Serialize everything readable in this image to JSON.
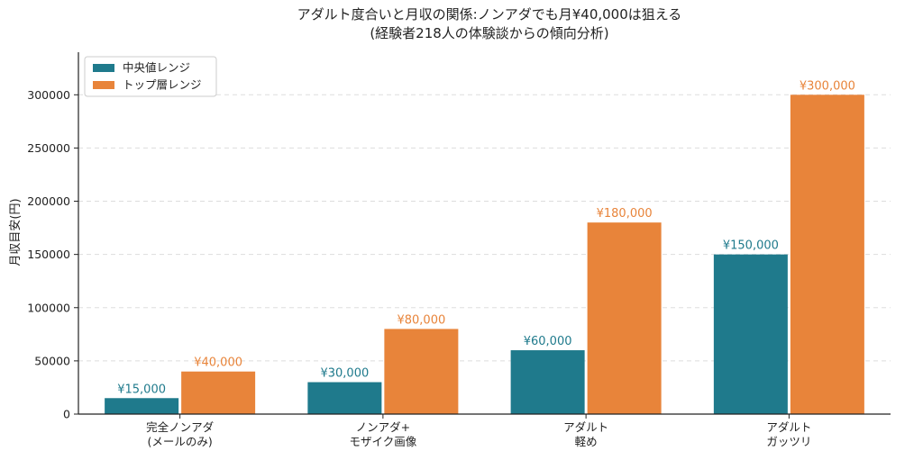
{
  "chart_data": {
    "type": "bar",
    "title_lines": [
      "アダルト度合いと月収の関係:ノンアダでも月¥40,000は狙える",
      "(経験者218人の体験談からの傾向分析)"
    ],
    "ylabel": "月収目安(円)",
    "xlabel": "",
    "ylim": [
      0,
      340000
    ],
    "yticks": [
      0,
      50000,
      100000,
      150000,
      200000,
      250000,
      300000
    ],
    "grid": "horizontal-dashed",
    "legend_position": "top-left",
    "categories": [
      [
        "完全ノンアダ",
        "(メールのみ)"
      ],
      [
        "ノンアダ+",
        "モザイク画像"
      ],
      [
        "アダルト",
        "軽め"
      ],
      [
        "アダルト",
        "ガッツリ"
      ]
    ],
    "series": [
      {
        "name": "中央値レンジ",
        "color": "#1f7a8c",
        "values": [
          15000,
          30000,
          60000,
          150000
        ],
        "labels": [
          "¥15,000",
          "¥30,000",
          "¥60,000",
          "¥150,000"
        ]
      },
      {
        "name": "トップ層レンジ",
        "color": "#e8843a",
        "values": [
          40000,
          80000,
          180000,
          300000
        ],
        "labels": [
          "¥40,000",
          "¥80,000",
          "¥180,000",
          "¥300,000"
        ]
      }
    ]
  }
}
